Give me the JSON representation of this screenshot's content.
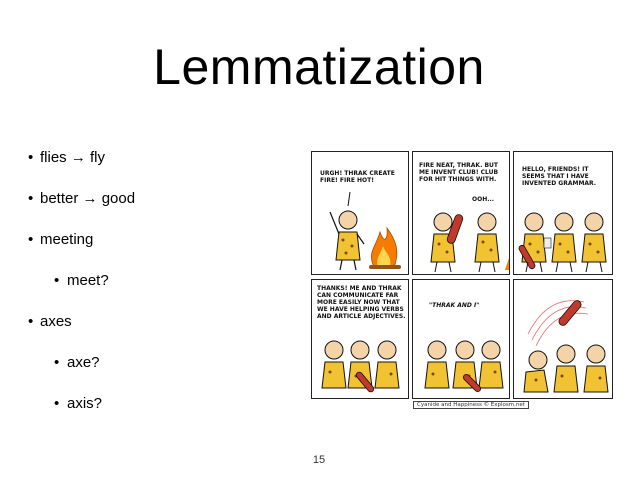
{
  "slide": {
    "title": "Lemmatization",
    "page_number": "15"
  },
  "bullets": [
    {
      "level": 0,
      "text": "flies → fly"
    },
    {
      "level": 0,
      "text": "better → good"
    },
    {
      "level": 0,
      "text": "meeting"
    },
    {
      "level": 1,
      "text": "meet?"
    },
    {
      "level": 0,
      "text": "axes"
    },
    {
      "level": 1,
      "text": "axe?"
    },
    {
      "level": 1,
      "text": "axis?"
    }
  ],
  "comic": {
    "panels": [
      {
        "caption": "URGH! THRAK CREATE FIRE! FIRE HOT!"
      },
      {
        "caption": "FIRE NEAT, THRAK. BUT ME INVENT CLUB! CLUB FOR HIT THINGS WITH.",
        "reply": "OOH..."
      },
      {
        "caption": "HELLO, FRIENDS! IT SEEMS THAT I HAVE INVENTED GRAMMAR."
      },
      {
        "caption": "THANKS! ME AND THRAK CAN COMMUNICATE FAR MORE EASILY NOW THAT WE HAVE HELPING VERBS AND ARTICLE ADJECTIVES."
      },
      {
        "caption": "\"THRAK AND I\""
      },
      {
        "caption": ""
      }
    ],
    "credit": "Cyanide and Happiness © Explosm.net"
  }
}
